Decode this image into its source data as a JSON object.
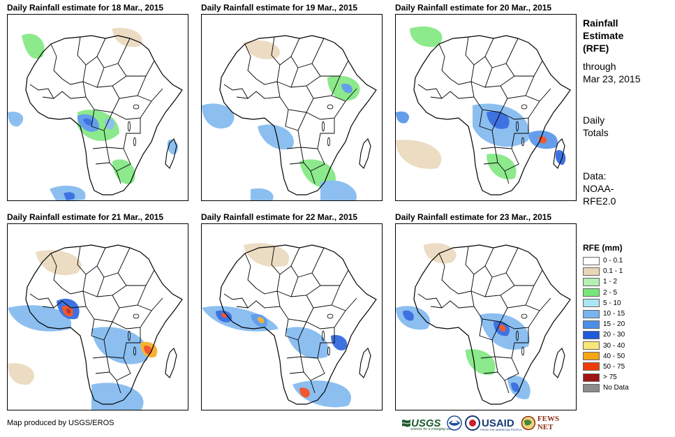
{
  "panels": [
    {
      "title": "Daily Rainfall estimate for 18 Mar., 2015",
      "date": "18 Mar., 2015"
    },
    {
      "title": "Daily Rainfall estimate for 19 Mar., 2015",
      "date": "19 Mar., 2015"
    },
    {
      "title": "Daily Rainfall estimate for 20 Mar., 2015",
      "date": "20 Mar., 2015"
    },
    {
      "title": "Daily Rainfall estimate for 21 Mar., 2015",
      "date": "21 Mar., 2015"
    },
    {
      "title": "Daily Rainfall estimate for 22 Mar., 2015",
      "date": "22 Mar., 2015"
    },
    {
      "title": "Daily Rainfall estimate for 23 Mar., 2015",
      "date": "23 Mar., 2015"
    }
  ],
  "sidebar": {
    "heading_line1": "Rainfall",
    "heading_line2": "Estimate",
    "heading_line3": "(RFE)",
    "through_line1": "through",
    "through_line2": "Mar 23, 2015",
    "totals_line1": "Daily",
    "totals_line2": "Totals",
    "data_line1": "Data:",
    "data_line2": "NOAA-",
    "data_line3": "RFE2.0"
  },
  "legend": {
    "title": "RFE (mm)",
    "items": [
      {
        "label": "0 - 0.1",
        "color": "#ffffff"
      },
      {
        "label": "0.1 - 1",
        "color": "#e8d6b8"
      },
      {
        "label": "1 - 2",
        "color": "#b4f0b4"
      },
      {
        "label": "2 - 5",
        "color": "#78e678"
      },
      {
        "label": "5 - 10",
        "color": "#aae6f5"
      },
      {
        "label": "10 - 15",
        "color": "#78b4ee"
      },
      {
        "label": "15 - 20",
        "color": "#4a8ee8"
      },
      {
        "label": "20 - 30",
        "color": "#1e5adc"
      },
      {
        "label": "30 - 40",
        "color": "#fae678"
      },
      {
        "label": "40 - 50",
        "color": "#f5a514"
      },
      {
        "label": "50 - 75",
        "color": "#f03c0a"
      },
      {
        "label": "> 75",
        "color": "#a01414"
      },
      {
        "label": "No Data",
        "color": "#8c8c8c"
      }
    ]
  },
  "footer": {
    "credit": "Map produced by USGS/EROS"
  },
  "logos": {
    "usgs": "USGS",
    "usgs_tagline": "science for a changing world",
    "usaid": "USAID",
    "usaid_tagline": "FROM THE AMERICAN PEOPLE",
    "fews": "FEWS NET"
  }
}
